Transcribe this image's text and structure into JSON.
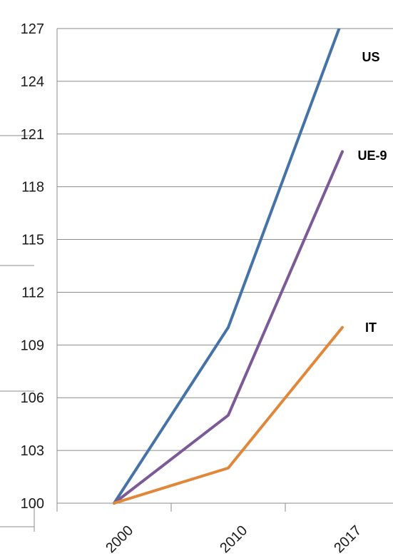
{
  "chart_data": {
    "type": "line",
    "categories": [
      "2000",
      "2010",
      "2017"
    ],
    "series": [
      {
        "name": "US",
        "values": [
          100,
          110,
          127.5
        ],
        "color": "#4572a7"
      },
      {
        "name": "UE-9",
        "values": [
          100,
          105,
          120
        ],
        "color": "#7b5a96"
      },
      {
        "name": "IT",
        "values": [
          100,
          102,
          110
        ],
        "color": "#e0873a"
      }
    ],
    "yticks": [
      "100",
      "103",
      "106",
      "109",
      "112",
      "115",
      "118",
      "121",
      "124",
      "127"
    ],
    "ylim": [
      100,
      127
    ],
    "grid": true,
    "legend": "inline-labels"
  }
}
